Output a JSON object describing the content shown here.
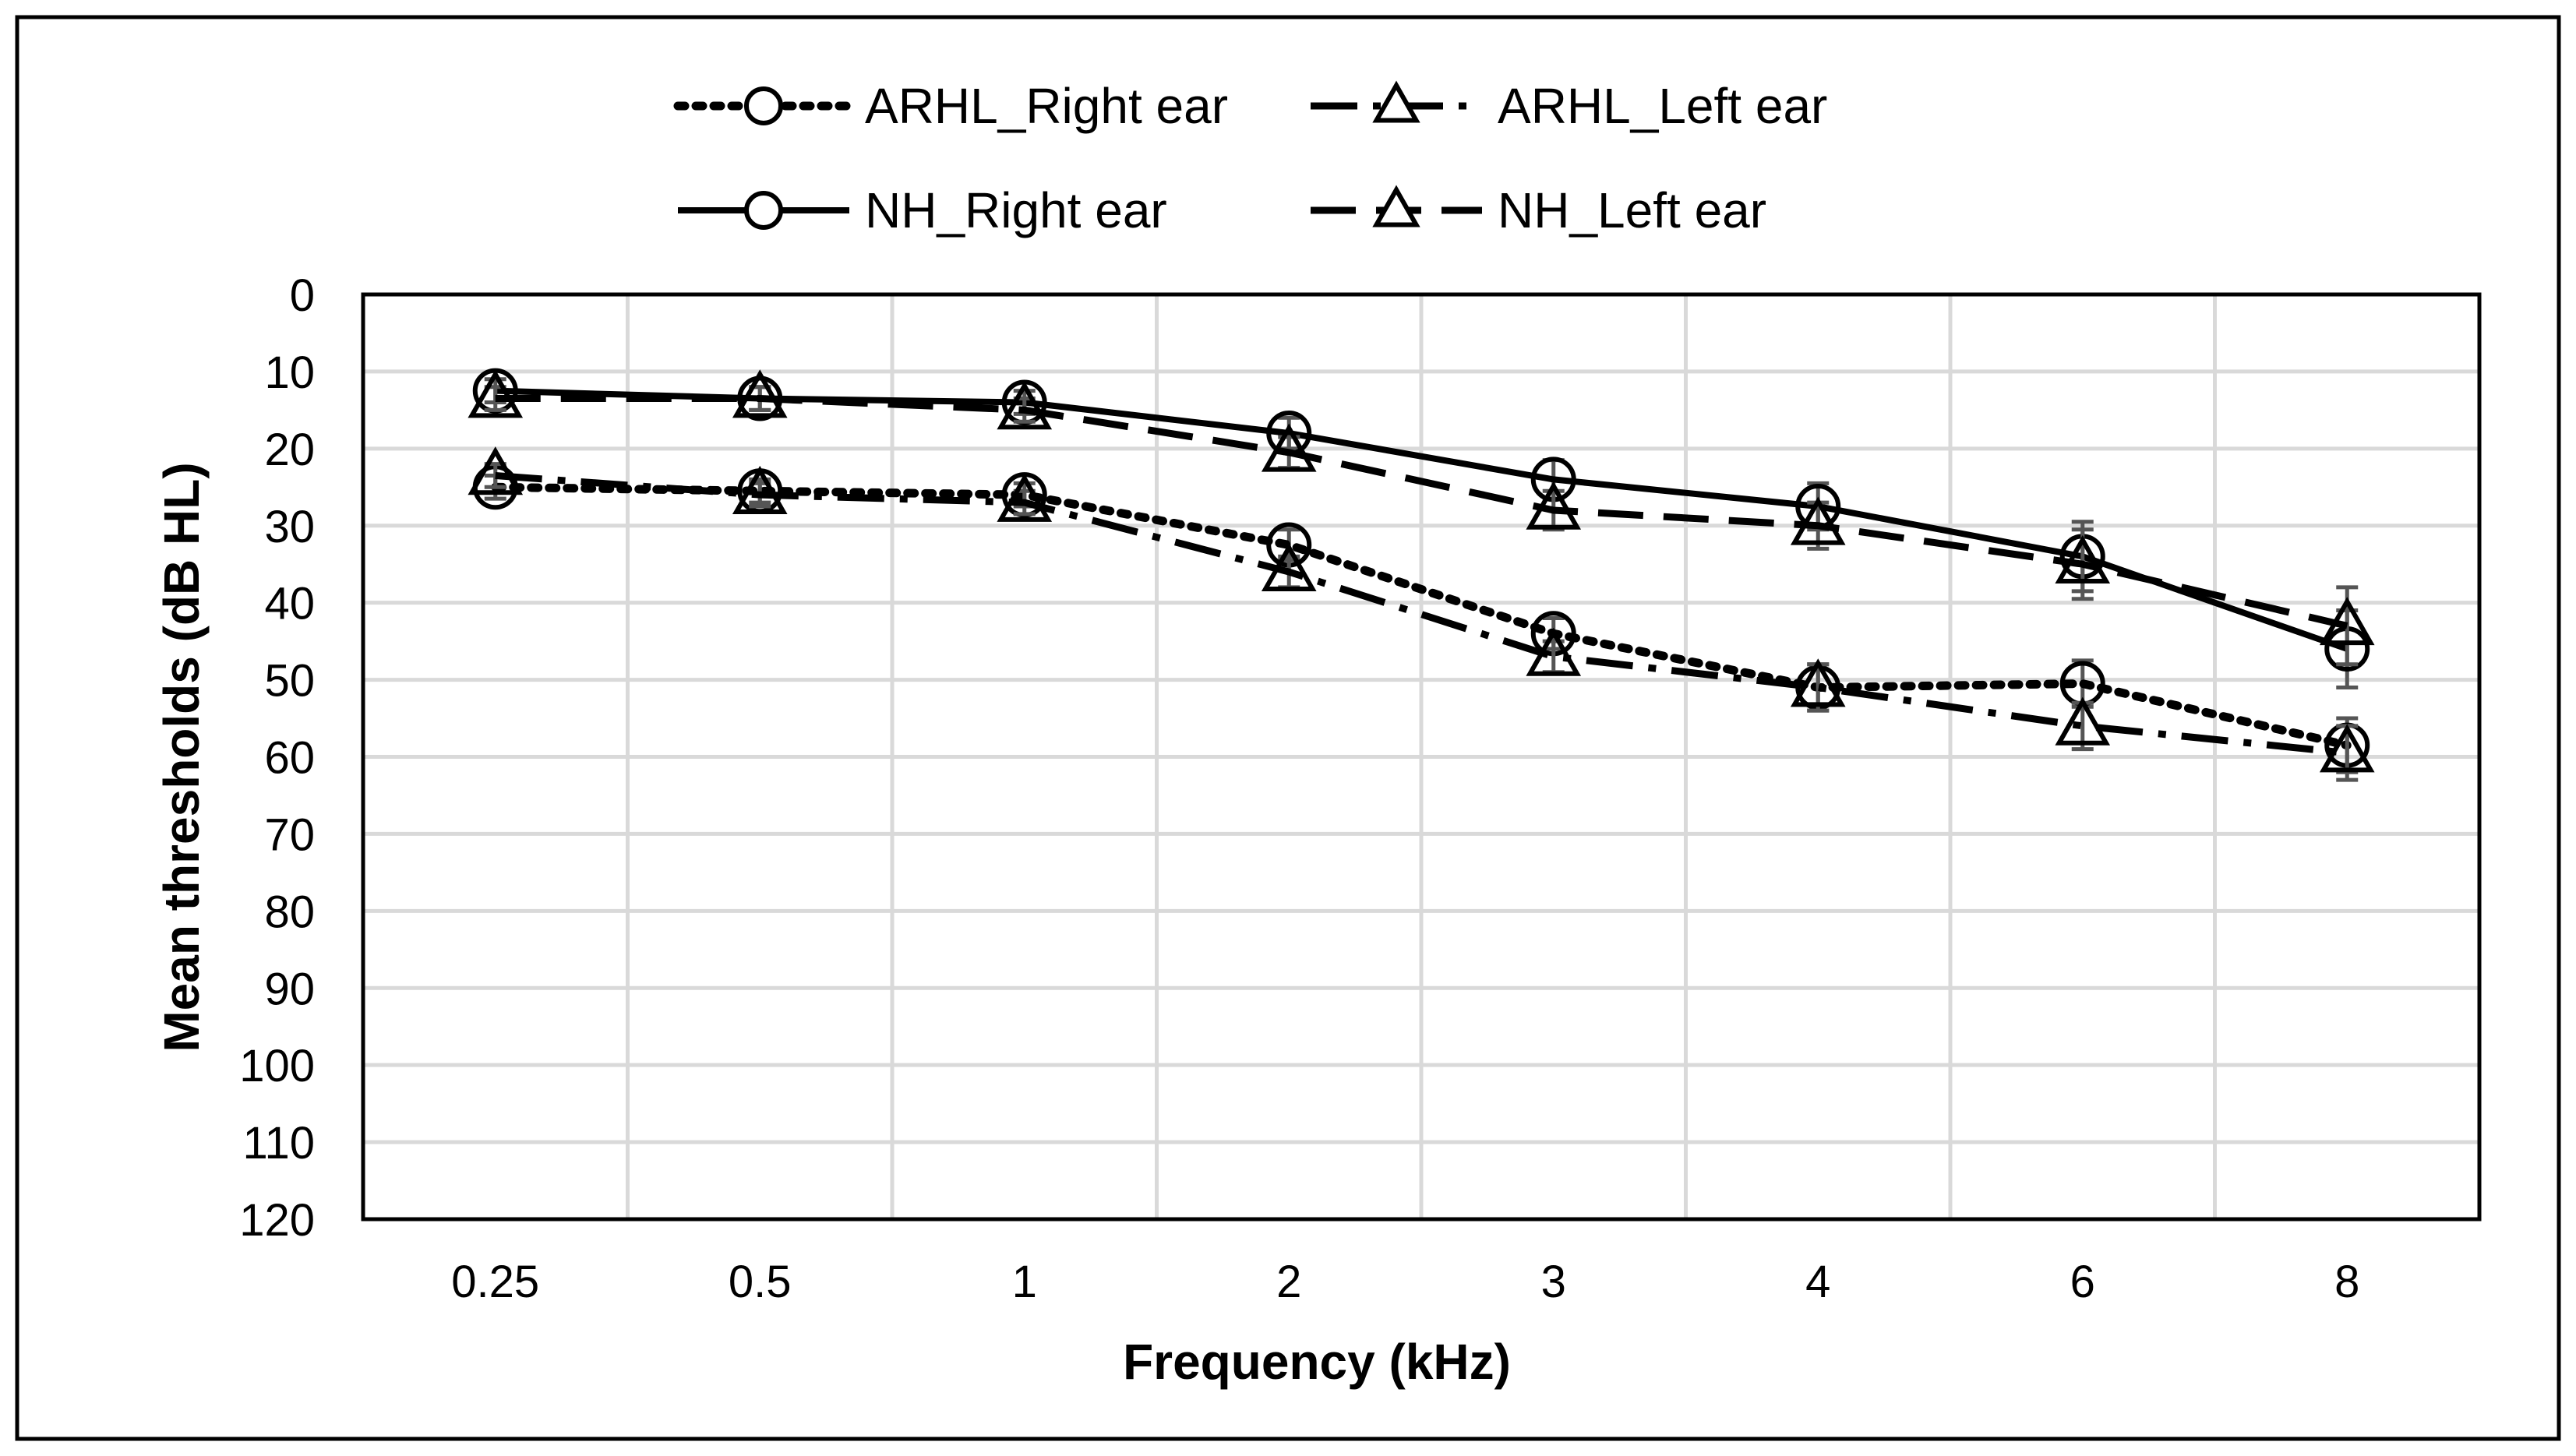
{
  "chart_data": {
    "type": "line",
    "title": "",
    "categories": [
      "0.25",
      "0.5",
      "1",
      "2",
      "3",
      "4",
      "6",
      "8"
    ],
    "xlabel": "Frequency (kHz)",
    "ylabel": "Mean thresholds (dB HL)",
    "ylim": [
      0,
      120
    ],
    "y_inverted": true,
    "yticks": [
      0,
      10,
      20,
      30,
      40,
      50,
      60,
      70,
      80,
      90,
      100,
      110,
      120
    ],
    "grid": true,
    "legend_position": "top",
    "series": [
      {
        "name": "ARHL_Right ear",
        "line_style": "dotted",
        "marker": "circle",
        "values": [
          25,
          25.5,
          26,
          32.5,
          44,
          51,
          50.5,
          58.5
        ],
        "errors": [
          1.5,
          1.5,
          1.5,
          2,
          2,
          3,
          3,
          3.5
        ]
      },
      {
        "name": "ARHL_Left ear",
        "line_style": "long-dash-dot",
        "marker": "triangle",
        "values": [
          23.5,
          26,
          27,
          36,
          47,
          51,
          56,
          59.5
        ],
        "errors": [
          1.5,
          1.5,
          1.5,
          2,
          2,
          3,
          3,
          3.5
        ]
      },
      {
        "name": "NH_Right ear",
        "line_style": "solid",
        "marker": "circle",
        "values": [
          12.5,
          13.5,
          14,
          18,
          24,
          27.5,
          34,
          46
        ],
        "errors": [
          1.5,
          1.5,
          1.5,
          2,
          2.5,
          3,
          4.5,
          5
        ]
      },
      {
        "name": "NH_Left ear",
        "line_style": "long-dash",
        "marker": "triangle",
        "values": [
          13.5,
          13.5,
          15,
          20.5,
          28,
          30,
          35,
          43
        ],
        "errors": [
          1.5,
          1.5,
          1.5,
          2,
          2.5,
          3,
          4.5,
          5
        ]
      }
    ]
  }
}
